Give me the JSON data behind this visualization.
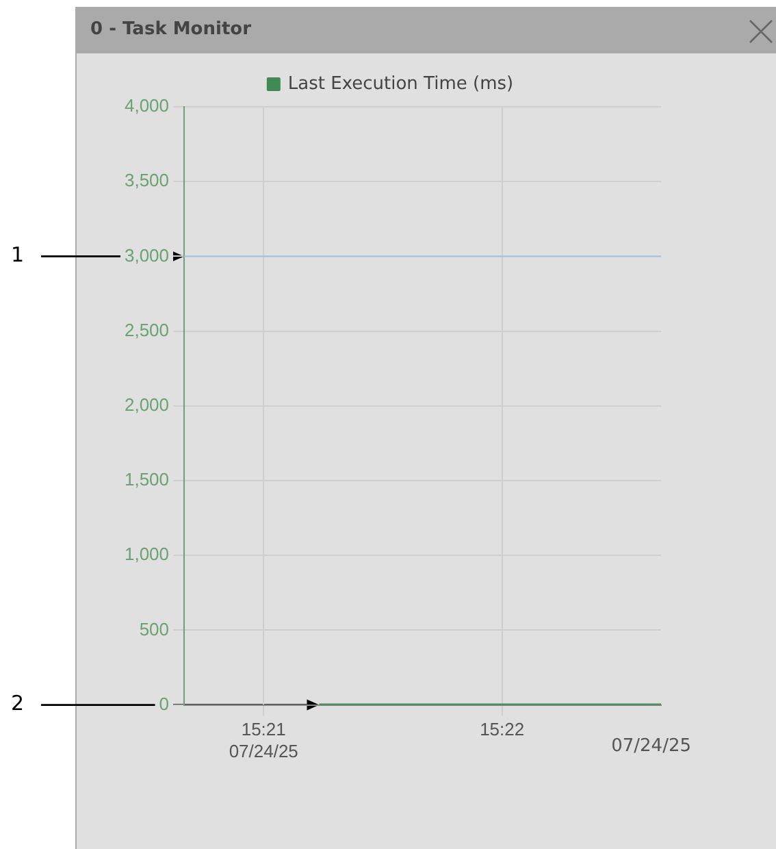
{
  "chart_data": {
    "type": "line",
    "title": "0 - Task Monitor",
    "x": [
      "--07-24T15:21:14",
      "--07-24T15:22:40"
    ],
    "series": [
      {
        "name": "Last Execution Time (ms)",
        "color": "#3f8a55",
        "values": [
          0,
          0
        ]
      }
    ],
    "xlim": [
      "--07-24T15:20:40",
      "--07-24T15:22:40"
    ],
    "xticks": [
      {
        "value": "--07-24T15:21",
        "label": "15:21\n07/24/25"
      },
      {
        "value": "--07-24T15:22",
        "label": "15:22"
      }
    ],
    "ylim": [
      0,
      4000
    ],
    "yticks": [
      {
        "value": 0,
        "label": "0"
      },
      {
        "value": 500,
        "label": "500"
      },
      {
        "value": 1000,
        "label": "1,000"
      },
      {
        "value": 1500,
        "label": "1,500"
      },
      {
        "value": 2000,
        "label": "2,000"
      },
      {
        "value": 2500,
        "label": "2,500"
      },
      {
        "value": 3000,
        "label": "3,000"
      },
      {
        "value": 3500,
        "label": "3,500"
      },
      {
        "value": 4000,
        "label": "4,000"
      }
    ],
    "ref_lines": [
      {
        "axis": "y",
        "value": 3000,
        "color": "#9cc3e6"
      }
    ],
    "annotations": [
      {
        "text": "1",
        "x": "--07-24T15:20:40",
        "y": 3000
      },
      {
        "text": "2",
        "x": "--07-24T15:21:14",
        "y": 0
      },
      "07/24/25"
    ],
    "grid": true,
    "legend": "top",
    "marker": "none",
    "line_style": "solid"
  }
}
